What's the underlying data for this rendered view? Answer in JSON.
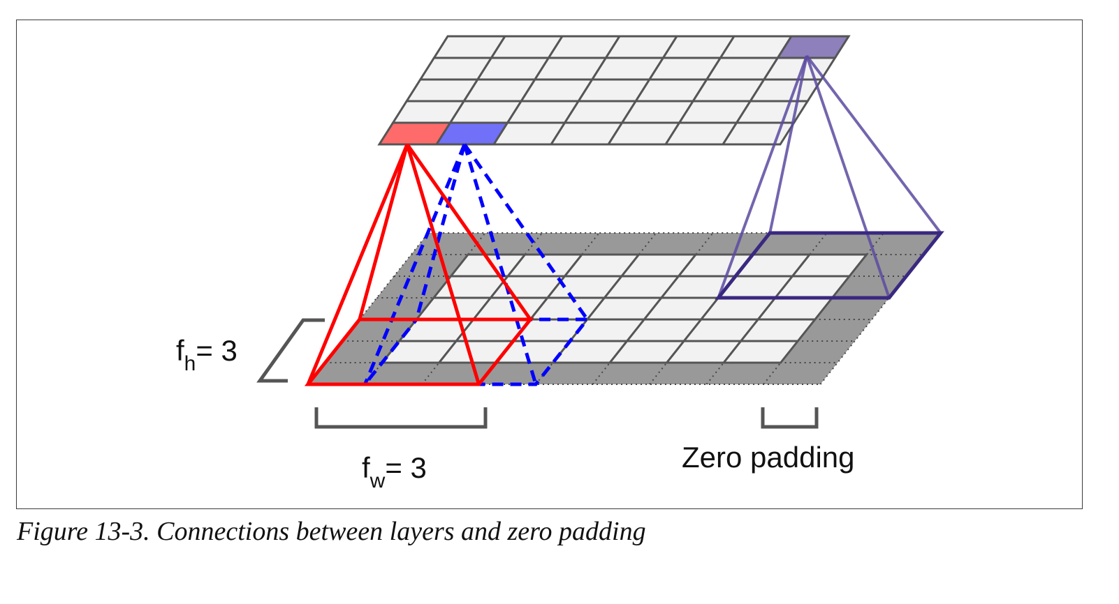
{
  "figure": {
    "caption": "Figure 13-3. Connections between layers and zero padding"
  },
  "labels": {
    "fh_main": "f",
    "fh_sub": "h",
    "fh_value": "= 3",
    "fw_main": "f",
    "fw_sub": "w",
    "fw_value": "= 3",
    "zero_padding": "Zero padding"
  },
  "layers": {
    "upper": {
      "rows": 5,
      "cols": 7
    },
    "lower": {
      "rows": 5,
      "cols": 7,
      "padding": 1
    }
  },
  "colors": {
    "red": "#ff0000",
    "red_cell": "#ff6b6b",
    "blue": "#0000ff",
    "blue_cell": "#7070f8",
    "purple": "#5c4aa0",
    "purple_dark": "#3a2880",
    "purple_cell": "#8e80bb",
    "cell_fill": "#f2f2f2",
    "padding_fill": "#999999",
    "grid_line": "#555555"
  }
}
